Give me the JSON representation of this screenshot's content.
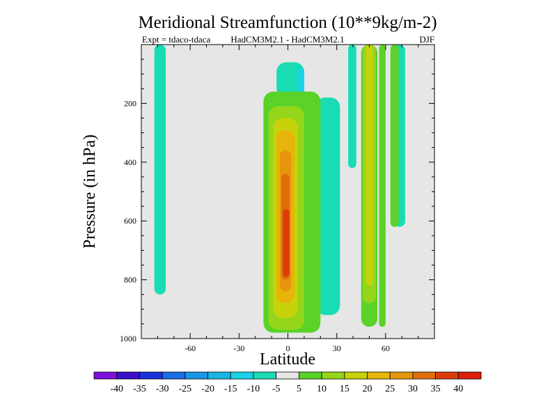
{
  "chart_data": {
    "type": "heatmap",
    "title": "Meridional Streamfunction (10**9kg/m-2)",
    "subtitle_left": "Expt = tdaco-tdaca",
    "subtitle_center": "HadCM3M2.1 - HadCM3M2.1",
    "subtitle_right": "DJF",
    "xlabel": "Latitude",
    "ylabel": "Pressure (in hPa)",
    "xlim": [
      -90,
      90
    ],
    "ylim": [
      1000,
      0
    ],
    "xticks": [
      -60,
      -30,
      0,
      30,
      60
    ],
    "yticks": [
      200,
      400,
      600,
      800,
      1000
    ],
    "colorbar": {
      "levels": [
        -40,
        -35,
        -30,
        -25,
        -20,
        -15,
        -10,
        -5,
        5,
        10,
        15,
        20,
        25,
        30,
        35,
        40
      ],
      "colors": [
        "#7d10dc",
        "#3a10c8",
        "#1a32dc",
        "#1a6ee6",
        "#1a96e6",
        "#1ab4e6",
        "#1ad2e6",
        "#1adcb4",
        "#e6e6e6",
        "#5ad228",
        "#96d61a",
        "#c8d20a",
        "#e6b40a",
        "#e6960a",
        "#e06e0a",
        "#dc3c0a",
        "#dc1e0a"
      ]
    },
    "contour_regions": [
      {
        "label": "-5",
        "color": "#1adcb4",
        "lat": [
          -82,
          -75
        ],
        "p": [
          0,
          850
        ]
      },
      {
        "label": "-5",
        "color": "#1adcb4",
        "lat": [
          -7,
          10
        ],
        "p": [
          60,
          180
        ]
      },
      {
        "label": "-10",
        "color": "#1ad2e6",
        "lat": [
          6,
          10
        ],
        "p": [
          80,
          180
        ]
      },
      {
        "label": "-5",
        "color": "#1adcb4",
        "lat": [
          17,
          32
        ],
        "p": [
          180,
          920
        ]
      },
      {
        "label": "-5",
        "color": "#1adcb4",
        "lat": [
          37,
          42
        ],
        "p": [
          0,
          420
        ]
      },
      {
        "label": "-5",
        "color": "#1adcb4",
        "lat": [
          65,
          72
        ],
        "p": [
          0,
          620
        ]
      },
      {
        "label": "10",
        "color": "#5ad228",
        "lat": [
          -15,
          20
        ],
        "p": [
          160,
          980
        ]
      },
      {
        "label": "15",
        "color": "#96d61a",
        "lat": [
          -12,
          10
        ],
        "p": [
          210,
          970
        ]
      },
      {
        "label": "20",
        "color": "#c8d20a",
        "lat": [
          -9,
          6
        ],
        "p": [
          250,
          930
        ]
      },
      {
        "label": "25",
        "color": "#e6b40a",
        "lat": [
          -7,
          4
        ],
        "p": [
          290,
          880
        ]
      },
      {
        "label": "30",
        "color": "#e6960a",
        "lat": [
          -5,
          2
        ],
        "p": [
          360,
          840
        ]
      },
      {
        "label": "35",
        "color": "#e06e0a",
        "lat": [
          -4,
          1
        ],
        "p": [
          440,
          800
        ]
      },
      {
        "label": "40",
        "color": "#dc3c0a",
        "lat": [
          -3,
          1
        ],
        "p": [
          560,
          790
        ]
      },
      {
        "label": "10",
        "color": "#5ad228",
        "lat": [
          45,
          55
        ],
        "p": [
          0,
          960
        ]
      },
      {
        "label": "15",
        "color": "#96d61a",
        "lat": [
          46,
          54
        ],
        "p": [
          0,
          880
        ]
      },
      {
        "label": "20",
        "color": "#c8d20a",
        "lat": [
          48,
          52
        ],
        "p": [
          0,
          820
        ]
      },
      {
        "label": "10",
        "color": "#5ad228",
        "lat": [
          56,
          60
        ],
        "p": [
          0,
          960
        ]
      },
      {
        "label": "10",
        "color": "#5ad228",
        "lat": [
          63,
          68
        ],
        "p": [
          0,
          620
        ]
      }
    ]
  }
}
